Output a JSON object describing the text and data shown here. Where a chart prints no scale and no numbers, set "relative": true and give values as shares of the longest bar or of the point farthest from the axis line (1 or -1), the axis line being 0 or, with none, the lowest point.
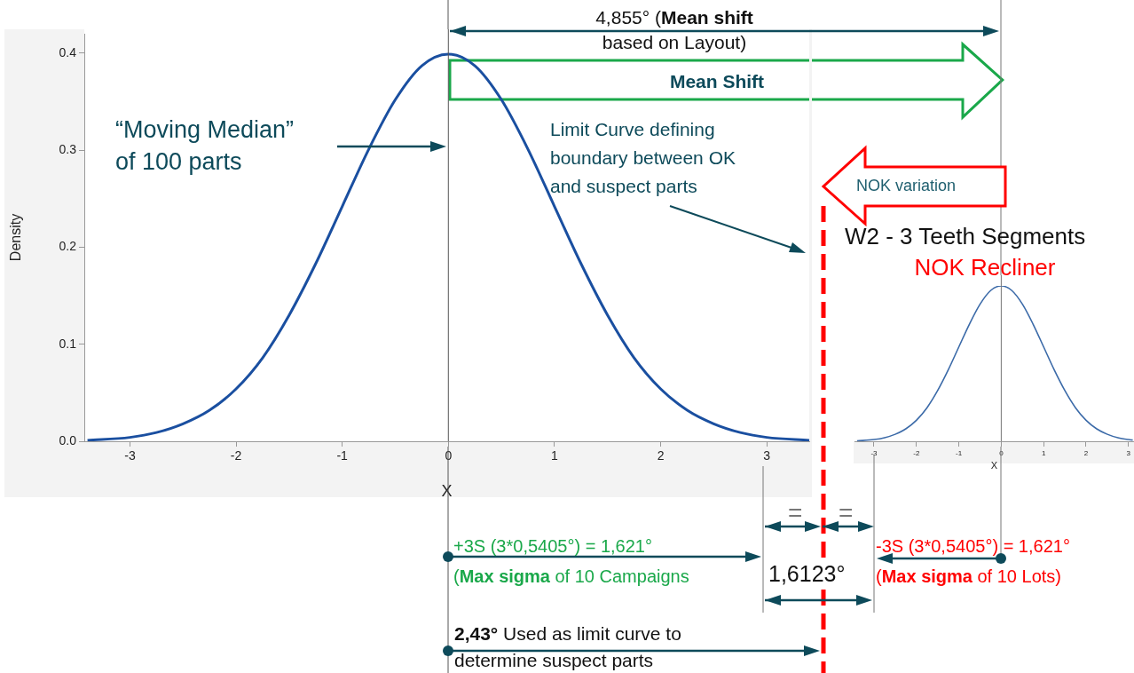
{
  "chart_data": [
    {
      "type": "line",
      "xlabel": "X",
      "ylabel": "Density",
      "series": [
        {
          "color": "#1a4fa0",
          "x": [
            -3.4,
            -3,
            -2.75,
            -2.5,
            -2.25,
            -2,
            -1.75,
            -1.5,
            -1.25,
            -1,
            -0.75,
            -0.5,
            -0.25,
            0,
            0.25,
            0.5,
            0.75,
            1,
            1.25,
            1.5,
            1.75,
            2,
            2.25,
            2.5,
            2.75,
            3,
            3.4
          ],
          "values": [
            0.001,
            0.004,
            0.009,
            0.018,
            0.032,
            0.054,
            0.086,
            0.13,
            0.183,
            0.242,
            0.301,
            0.352,
            0.387,
            0.399,
            0.387,
            0.352,
            0.301,
            0.242,
            0.183,
            0.13,
            0.086,
            0.054,
            0.032,
            0.018,
            0.009,
            0.004,
            0.001
          ]
        }
      ],
      "xlim": [
        -3.43,
        3.4
      ],
      "xticks": [
        -3,
        -2,
        -1,
        0,
        1,
        2,
        3
      ],
      "ylim": [
        0,
        0.42
      ],
      "yticks": [
        {
          "value": 0,
          "label": "0.0"
        },
        {
          "value": 0.1,
          "label": "0.1"
        },
        {
          "value": 0.2,
          "label": "0.2"
        },
        {
          "value": 0.3,
          "label": "0.3"
        },
        {
          "value": 0.4,
          "label": "0.4"
        }
      ],
      "ref_lines": [
        {
          "axis": "x",
          "value": 0,
          "color": "#555555"
        }
      ],
      "annotations": [
        "4,855° (",
        "Mean shift",
        "based on Layout)",
        "Mean Shift",
        "“Moving Median”",
        "of 100 parts",
        "Limit Curve defining",
        "boundary between OK",
        "and suspect parts",
        "NOK variation",
        "W2 - 3 Teeth Segments",
        "NOK Recliner",
        "=",
        "=",
        "+3S (3*0,5405°) = 1,621°",
        "(",
        "Max sigma",
        " of 10 Campaigns",
        "1,6123°",
        "-3S (3*0,5405°) = 1,621°",
        "(",
        "Max sigma",
        " of 10 Lots)",
        "2,43°",
        " Used as limit curve to",
        "determine suspect parts"
      ]
    },
    {
      "type": "line",
      "xlabel": "X",
      "relative": true,
      "tick_labels": "x",
      "series": [
        {
          "color": "#3b6aa8",
          "x": [
            -3.4,
            -3,
            -2.75,
            -2.5,
            -2.25,
            -2,
            -1.75,
            -1.5,
            -1.25,
            -1,
            -0.75,
            -0.5,
            -0.25,
            0,
            0.25,
            0.5,
            0.75,
            1,
            1.25,
            1.5,
            1.75,
            2,
            2.25,
            2.5,
            2.75,
            3,
            3.1
          ],
          "values": [
            0.003,
            0.011,
            0.023,
            0.045,
            0.08,
            0.135,
            0.216,
            0.326,
            0.459,
            0.607,
            0.754,
            0.882,
            0.97,
            1,
            0.97,
            0.882,
            0.754,
            0.607,
            0.459,
            0.326,
            0.216,
            0.135,
            0.08,
            0.045,
            0.023,
            0.011,
            0.008
          ]
        }
      ],
      "xlim": [
        -3.46,
        3.13
      ],
      "xticks": [
        -3,
        -2,
        -1,
        0,
        1,
        2,
        3
      ],
      "ref_lines": [
        {
          "axis": "x",
          "value": 0,
          "color": "#777777"
        }
      ]
    }
  ]
}
